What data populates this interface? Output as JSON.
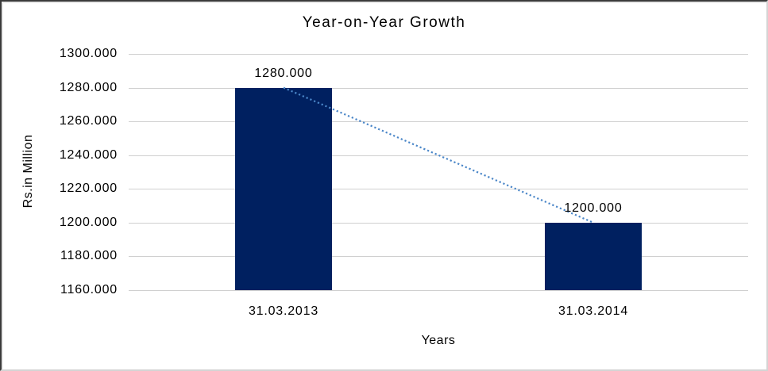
{
  "chart_data": {
    "type": "bar",
    "title": "Year-on-Year Growth",
    "xlabel": "Years",
    "ylabel": "Rs.in Million",
    "categories": [
      "31.03.2013",
      "31.03.2014"
    ],
    "values": [
      1280,
      1200
    ],
    "data_labels": [
      "1280.000",
      "1200.000"
    ],
    "ylim": [
      1160,
      1300
    ],
    "ytick_step": 20,
    "ytick_labels": [
      "1300.000",
      "1280.000",
      "1260.000",
      "1240.000",
      "1220.000",
      "1200.000",
      "1180.000",
      "1160.000"
    ],
    "grid": "horizontal",
    "legend": "none",
    "trendline": {
      "style": "dotted",
      "from_category": "31.03.2013",
      "to_category": "31.03.2014"
    },
    "colors": {
      "bar": "#002060",
      "trendline": "#4a86c8",
      "gridline": "#d0d0d0",
      "text": "#000000",
      "background": "#ffffff"
    }
  }
}
